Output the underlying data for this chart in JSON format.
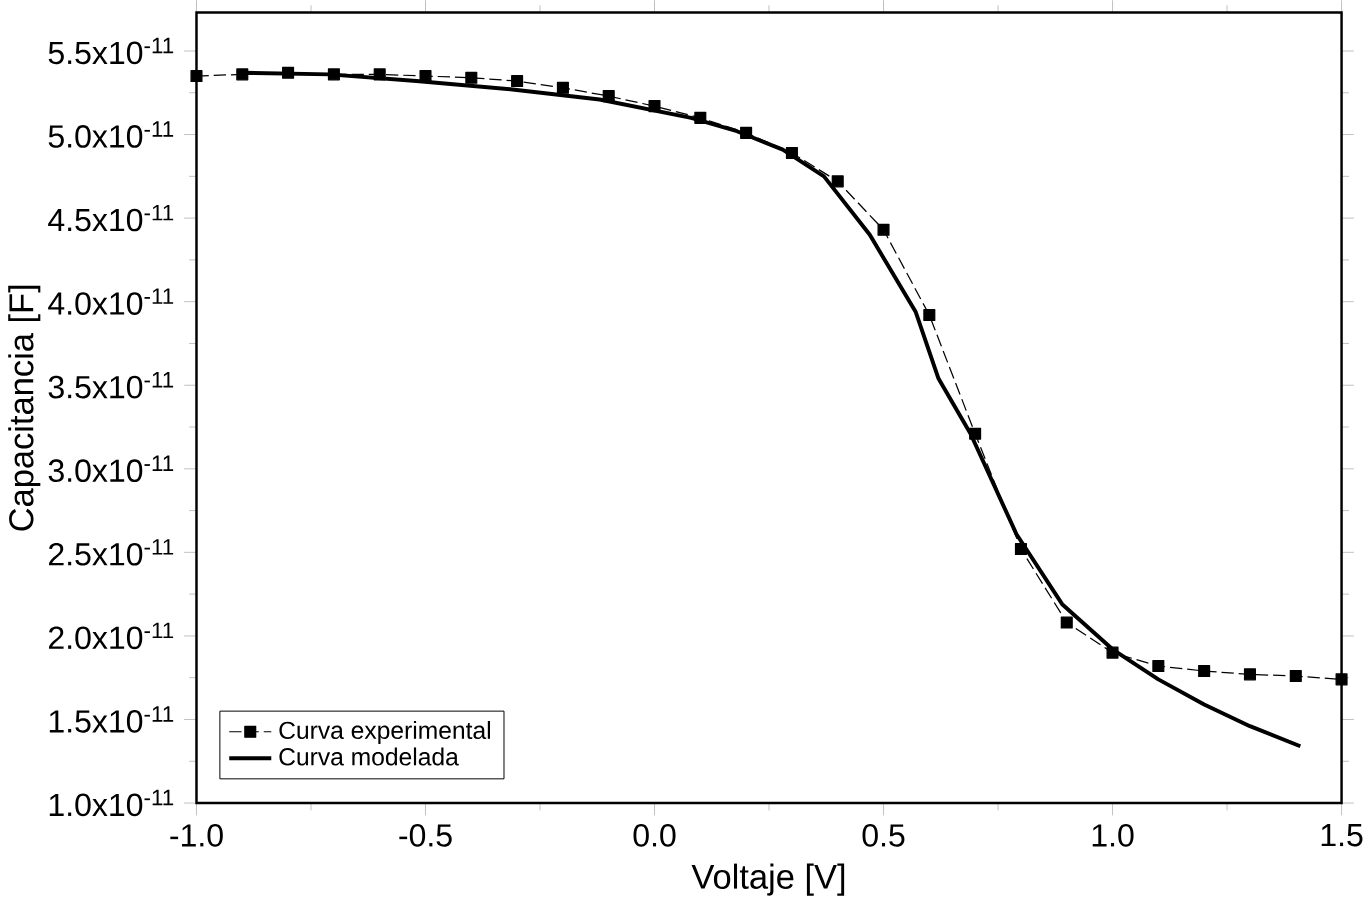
{
  "chart_data": {
    "type": "line",
    "xlabel": "Voltaje [V]",
    "ylabel": "Capacitancia [F]",
    "xlim": [
      -1.0,
      1.5
    ],
    "ylim": [
      1e-11,
      5.73e-11
    ],
    "xticks": [
      {
        "value": -1.0,
        "label": "-1.0"
      },
      {
        "value": -0.5,
        "label": "-0.5"
      },
      {
        "value": 0.0,
        "label": "0.0"
      },
      {
        "value": 0.5,
        "label": "0.5"
      },
      {
        "value": 1.0,
        "label": "1.0"
      },
      {
        "value": 1.5,
        "label": "1.5"
      }
    ],
    "yticks": [
      {
        "value": 1e-11,
        "label": "1.0x10$^{-11}$"
      },
      {
        "value": 1.5e-11,
        "label": "1.5x10$^{-11}$"
      },
      {
        "value": 2e-11,
        "label": "2.0x10$^{-11}$"
      },
      {
        "value": 2.5e-11,
        "label": "2.5x10$^{-11}$"
      },
      {
        "value": 3e-11,
        "label": "3.0x10$^{-11}$"
      },
      {
        "value": 3.5e-11,
        "label": "3.5x10$^{-11}$"
      },
      {
        "value": 4e-11,
        "label": "4.0x10$^{-11}$"
      },
      {
        "value": 4.5e-11,
        "label": "4.5x10$^{-11}$"
      },
      {
        "value": 5e-11,
        "label": "5.0x10$^{-11}$"
      },
      {
        "value": 5.5e-11,
        "label": "5.5x10$^{-11}$"
      }
    ],
    "grid": false,
    "legend": "bottom left",
    "series": [
      {
        "name": "Curva experimental",
        "color": "#000000",
        "marker": "square",
        "line_style": "dashed",
        "x": [
          -1.0,
          -0.9,
          -0.8,
          -0.7,
          -0.6,
          -0.5,
          -0.4,
          -0.3,
          -0.2,
          -0.1,
          0.0,
          0.1,
          0.2,
          0.3,
          0.4,
          0.5,
          0.6,
          0.7,
          0.8,
          0.9,
          1.0,
          1.1,
          1.2,
          1.3,
          1.4,
          1.5
        ],
        "values": [
          5.35e-11,
          5.36e-11,
          5.37e-11,
          5.36e-11,
          5.36e-11,
          5.35e-11,
          5.34e-11,
          5.32e-11,
          5.28e-11,
          5.23e-11,
          5.17e-11,
          5.1e-11,
          5.01e-11,
          4.89e-11,
          4.72e-11,
          4.43e-11,
          3.92e-11,
          3.21e-11,
          2.52e-11,
          2.08e-11,
          1.9e-11,
          1.82e-11,
          1.79e-11,
          1.77e-11,
          1.76e-11,
          1.74e-11
        ]
      },
      {
        "name": "Curva modelada",
        "color": "#000000",
        "marker": "none",
        "line_style": "solid",
        "x": [
          -0.9,
          -0.71,
          -0.52,
          -0.31,
          -0.12,
          0.08,
          0.18,
          0.28,
          0.37,
          0.47,
          0.57,
          0.62,
          0.69,
          0.79,
          0.89,
          1.0,
          1.1,
          1.2,
          1.3,
          1.41
        ],
        "values": [
          5.37e-11,
          5.36e-11,
          5.32e-11,
          5.27e-11,
          5.21e-11,
          5.1e-11,
          5.02e-11,
          4.91e-11,
          4.75e-11,
          4.4e-11,
          3.94e-11,
          3.54e-11,
          3.21e-11,
          2.61e-11,
          2.19e-11,
          1.92e-11,
          1.74e-11,
          1.59e-11,
          1.46e-11,
          1.34e-11
        ]
      }
    ]
  }
}
